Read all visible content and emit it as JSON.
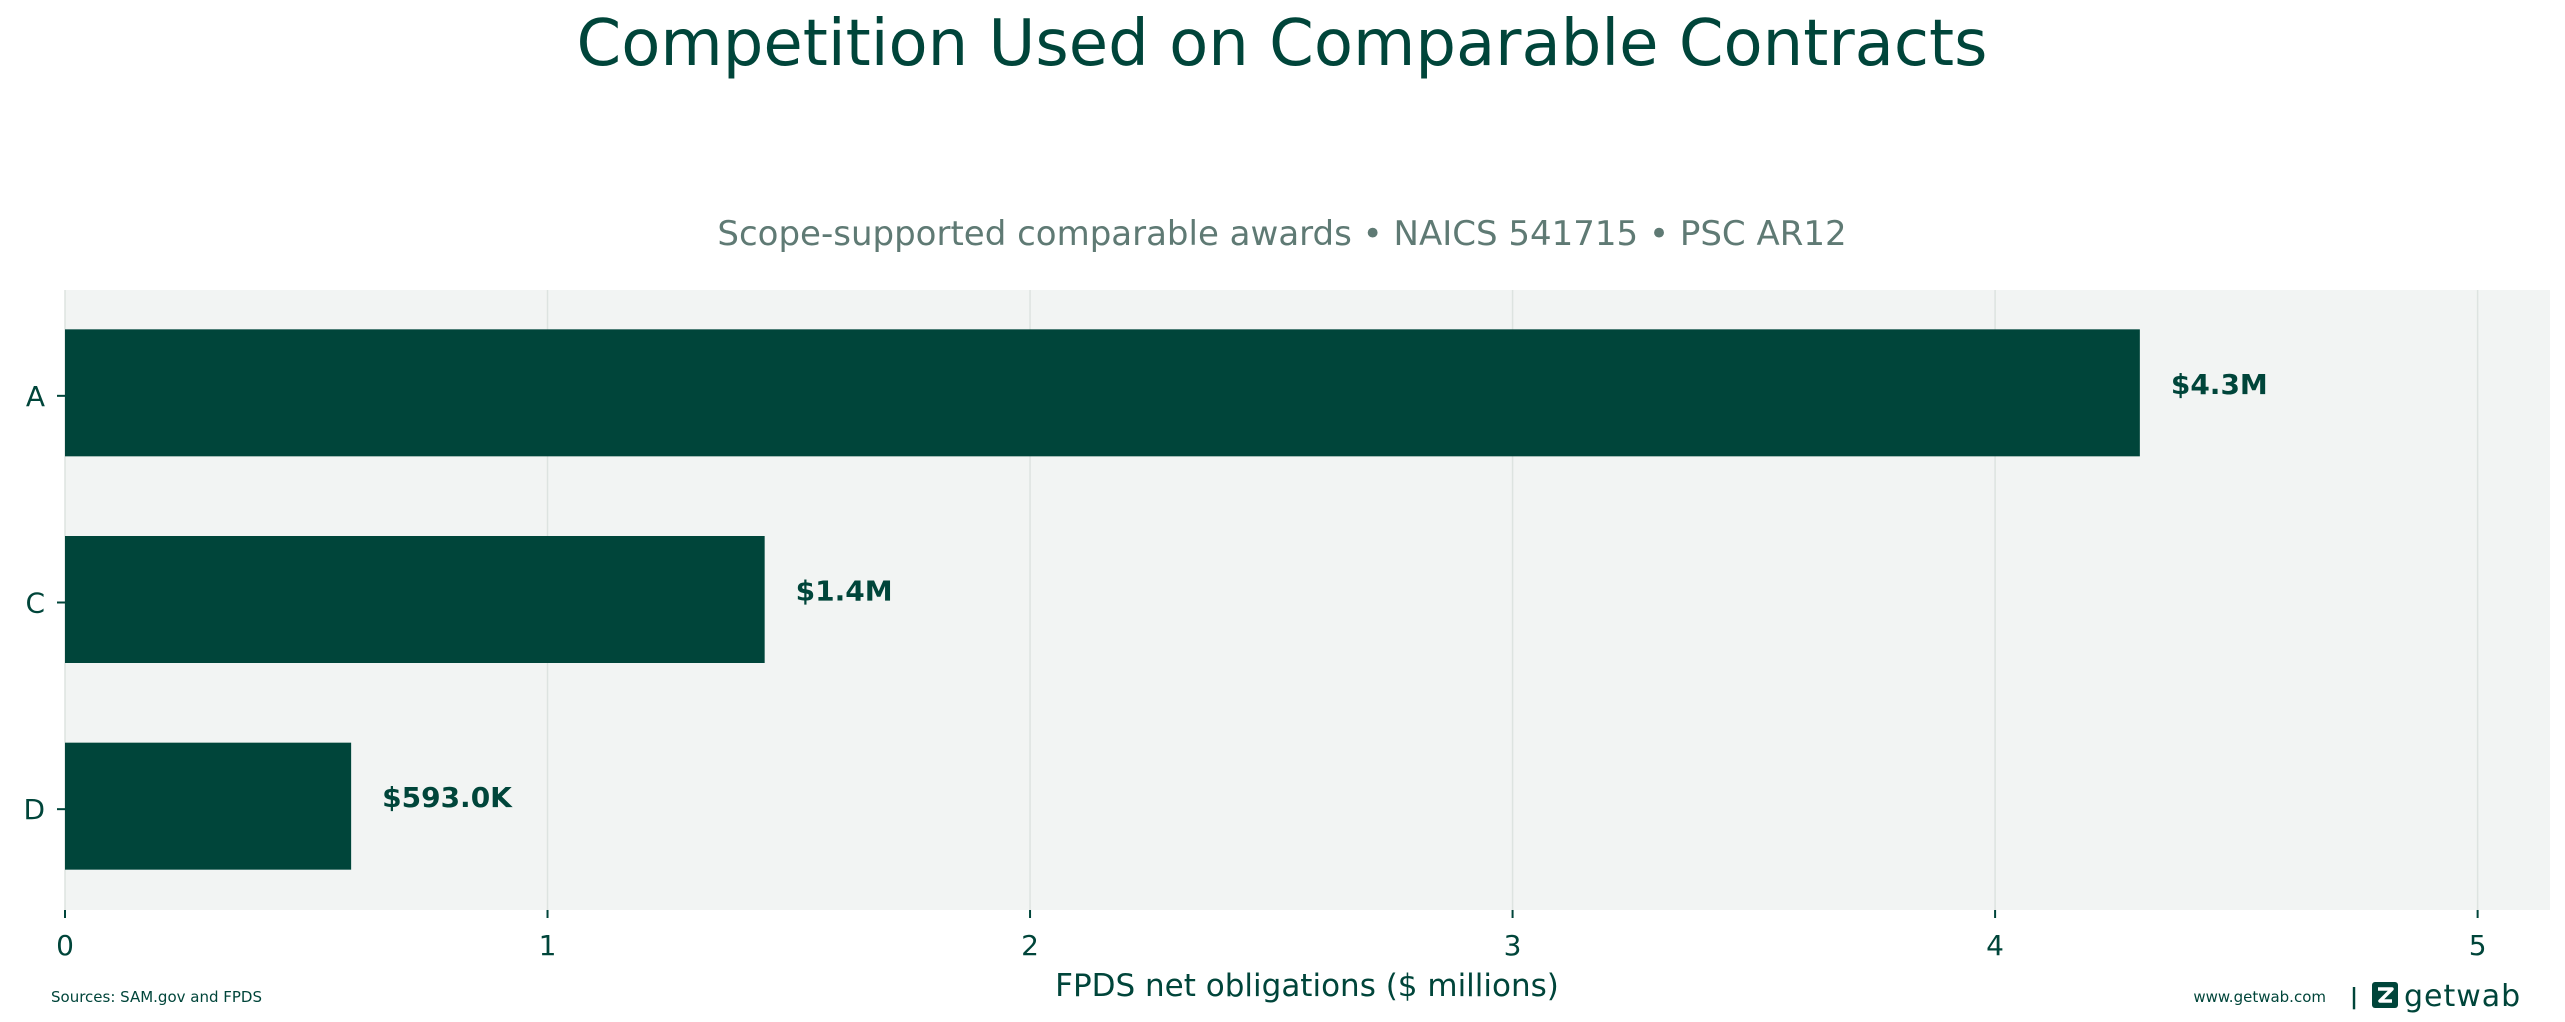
{
  "colors": {
    "bar": "#00453a",
    "plot_bg": "#f2f4f3",
    "grid": "#dde3e0",
    "text": "#00453a",
    "subtitle": "#5f7a74"
  },
  "footer": {
    "sources": "Sources: SAM.gov and FPDS",
    "website": "www.getwab.com",
    "separator": "|",
    "brand": "getwab",
    "brand_icon": "getwab-logo-icon"
  },
  "chart_data": {
    "type": "bar",
    "orientation": "horizontal",
    "title": "Competition Used on Comparable Contracts",
    "subtitle": "Scope-supported comparable awards • NAICS 541715 • PSC AR12",
    "xlabel": "FPDS net obligations ($ millions)",
    "ylabel": "",
    "categories": [
      "A",
      "C",
      "D"
    ],
    "values": [
      4.3,
      1.45,
      0.593
    ],
    "data_labels": [
      "$4.3M",
      "$1.4M",
      "$593.0K"
    ],
    "xlim": [
      0,
      5.15
    ],
    "xticks": [
      0,
      1,
      2,
      3,
      4,
      5
    ],
    "grid": "vertical",
    "legend": "none"
  }
}
